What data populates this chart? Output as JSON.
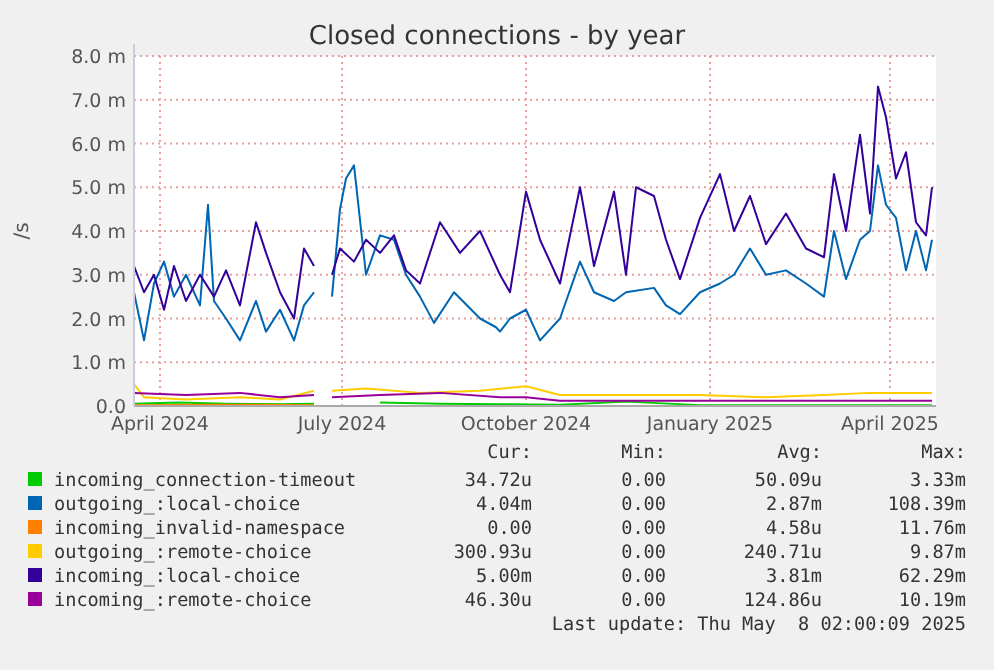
{
  "chart_data": {
    "type": "line",
    "title": "Closed connections - by year",
    "ylabel": "/s",
    "xlim": [
      "2024-03-19",
      "2025-04-24"
    ],
    "xticks": [
      {
        "value": "2024-04-01",
        "label": "April 2024"
      },
      {
        "value": "2024-07-01",
        "label": "July 2024"
      },
      {
        "value": "2024-10-01",
        "label": "October 2024"
      },
      {
        "value": "2025-01-01",
        "label": "January 2025"
      },
      {
        "value": "2025-04-01",
        "label": "April 2025"
      }
    ],
    "ylim": [
      0,
      8
    ],
    "yticks": [
      {
        "value": 0,
        "label": "0.0"
      },
      {
        "value": 1,
        "label": "1.0 m"
      },
      {
        "value": 2,
        "label": "2.0 m"
      },
      {
        "value": 3,
        "label": "3.0 m"
      },
      {
        "value": 4,
        "label": "4.0 m"
      },
      {
        "value": 5,
        "label": "5.0 m"
      },
      {
        "value": 6,
        "label": "6.0 m"
      },
      {
        "value": 7,
        "label": "7.0 m"
      },
      {
        "value": 8,
        "label": "8.0 m"
      }
    ],
    "grid": true,
    "legend": "bottom",
    "annotations": [
      "Cur:",
      "Min:",
      "Avg:",
      "Max:",
      "34.72u",
      "0.00",
      "50.09u",
      "3.33m",
      "4.04m",
      "0.00",
      "2.87m",
      "108.39m",
      "0.00",
      "0.00",
      "4.58u",
      "11.76m",
      "300.93u",
      "0.00",
      "240.71u",
      "9.87m",
      "5.00m",
      "0.00",
      "3.81m",
      "62.29m",
      "46.30u",
      "0.00",
      "124.86u",
      "10.19m",
      "Last update: Thu May  8 02:00:09 2025"
    ],
    "series": [
      {
        "name": "incoming_connection-timeout",
        "color": "#00cc00",
        "x": [
          "2024-03-19",
          "2024-04-10",
          "2024-05-04",
          "2024-05-31",
          "2024-06-17",
          "2024-06-26",
          "2024-07-20",
          "2024-08-19",
          "2024-09-18",
          "2024-10-18",
          "2024-11-20",
          "2024-12-27",
          "2025-01-29",
          "2025-02-27",
          "2025-03-22",
          "2025-04-22"
        ],
        "values": [
          0.05,
          0.08,
          0.05,
          0.04,
          0.05,
          null,
          0.08,
          0.05,
          0.04,
          0.03,
          0.1,
          0.02,
          0.02,
          0.02,
          0.02,
          0.02
        ]
      },
      {
        "name": "outgoing_:local-choice",
        "color": "#0066b3",
        "x": [
          "2024-03-19",
          "2024-03-24",
          "2024-03-29",
          "2024-04-03",
          "2024-04-08",
          "2024-04-14",
          "2024-04-21",
          "2024-04-25",
          "2024-04-28",
          "2024-05-04",
          "2024-05-11",
          "2024-05-19",
          "2024-05-24",
          "2024-05-31",
          "2024-06-07",
          "2024-06-12",
          "2024-06-17",
          "2024-06-20",
          "2024-06-26",
          "2024-06-30",
          "2024-07-03",
          "2024-07-07",
          "2024-07-13",
          "2024-07-20",
          "2024-07-27",
          "2024-08-02",
          "2024-08-09",
          "2024-08-16",
          "2024-08-26",
          "2024-09-08",
          "2024-09-16",
          "2024-09-18",
          "2024-09-23",
          "2024-10-01",
          "2024-10-08",
          "2024-10-18",
          "2024-10-28",
          "2024-11-04",
          "2024-11-14",
          "2024-11-20",
          "2024-12-04",
          "2024-12-10",
          "2024-12-17",
          "2024-12-27",
          "2025-01-06",
          "2025-01-13",
          "2025-01-21",
          "2025-01-29",
          "2025-02-08",
          "2025-02-18",
          "2025-02-27",
          "2025-03-04",
          "2025-03-10",
          "2025-03-17",
          "2025-03-22",
          "2025-03-26",
          "2025-03-30",
          "2025-04-04",
          "2025-04-09",
          "2025-04-14",
          "2025-04-19",
          "2025-04-22"
        ],
        "values": [
          2.6,
          1.5,
          2.8,
          3.3,
          2.5,
          3.0,
          2.3,
          4.6,
          2.4,
          2.0,
          1.5,
          2.4,
          1.7,
          2.2,
          1.5,
          2.3,
          2.6,
          null,
          2.5,
          4.5,
          5.2,
          5.5,
          3.0,
          3.9,
          3.8,
          3.0,
          2.5,
          1.9,
          2.6,
          2.0,
          1.8,
          1.7,
          2.0,
          2.2,
          1.5,
          2.0,
          3.3,
          2.6,
          2.4,
          2.6,
          2.7,
          2.3,
          2.1,
          2.6,
          2.8,
          3.0,
          3.6,
          3.0,
          3.1,
          2.8,
          2.5,
          4.0,
          2.9,
          3.8,
          4.0,
          5.5,
          4.6,
          4.3,
          3.1,
          4.0,
          3.1,
          3.8
        ]
      },
      {
        "name": "incoming_invalid-namespace",
        "color": "#ff8000",
        "x": [
          "2024-03-19",
          "2024-05-01",
          "2024-06-17"
        ],
        "values": [
          0.02,
          0.03,
          0.02
        ]
      },
      {
        "name": "outgoing_:remote-choice",
        "color": "#ffcc00",
        "x": [
          "2024-03-19",
          "2024-03-24",
          "2024-04-14",
          "2024-05-11",
          "2024-05-31",
          "2024-06-17",
          "2024-06-20",
          "2024-06-26",
          "2024-07-13",
          "2024-08-09",
          "2024-09-08",
          "2024-10-01",
          "2024-10-18",
          "2024-11-20",
          "2024-12-27",
          "2025-01-29",
          "2025-02-27",
          "2025-03-22",
          "2025-04-22"
        ],
        "values": [
          0.5,
          0.2,
          0.15,
          0.2,
          0.15,
          0.35,
          null,
          0.35,
          0.4,
          0.3,
          0.35,
          0.45,
          0.25,
          0.25,
          0.25,
          0.2,
          0.25,
          0.3,
          0.3
        ]
      },
      {
        "name": "incoming_:local-choice",
        "color": "#330099",
        "x": [
          "2024-03-19",
          "2024-03-24",
          "2024-03-29",
          "2024-04-03",
          "2024-04-08",
          "2024-04-14",
          "2024-04-21",
          "2024-04-28",
          "2024-05-04",
          "2024-05-11",
          "2024-05-19",
          "2024-05-24",
          "2024-05-31",
          "2024-06-07",
          "2024-06-12",
          "2024-06-17",
          "2024-06-20",
          "2024-06-26",
          "2024-06-30",
          "2024-07-07",
          "2024-07-13",
          "2024-07-20",
          "2024-07-27",
          "2024-08-02",
          "2024-08-09",
          "2024-08-19",
          "2024-08-29",
          "2024-09-08",
          "2024-09-18",
          "2024-09-23",
          "2024-10-01",
          "2024-10-08",
          "2024-10-18",
          "2024-10-28",
          "2024-11-04",
          "2024-11-14",
          "2024-11-20",
          "2024-11-25",
          "2024-12-04",
          "2024-12-10",
          "2024-12-17",
          "2024-12-27",
          "2025-01-06",
          "2025-01-13",
          "2025-01-21",
          "2025-01-29",
          "2025-02-08",
          "2025-02-18",
          "2025-02-27",
          "2025-03-04",
          "2025-03-10",
          "2025-03-17",
          "2025-03-22",
          "2025-03-26",
          "2025-03-30",
          "2025-04-04",
          "2025-04-09",
          "2025-04-14",
          "2025-04-19",
          "2025-04-22"
        ],
        "values": [
          3.2,
          2.6,
          3.0,
          2.2,
          3.2,
          2.4,
          3.0,
          2.5,
          3.1,
          2.3,
          4.2,
          3.5,
          2.6,
          2.0,
          3.6,
          3.2,
          null,
          3.0,
          3.6,
          3.3,
          3.8,
          3.5,
          3.9,
          3.1,
          2.8,
          4.2,
          3.5,
          4.0,
          3.0,
          2.6,
          4.9,
          3.8,
          2.8,
          5.0,
          3.2,
          4.9,
          3.0,
          5.0,
          4.8,
          3.8,
          2.9,
          4.3,
          5.3,
          4.0,
          4.8,
          3.7,
          4.4,
          3.6,
          3.4,
          5.3,
          4.0,
          6.2,
          4.4,
          7.3,
          6.6,
          5.2,
          5.8,
          4.2,
          3.9,
          5.0
        ]
      },
      {
        "name": "incoming_:remote-choice",
        "color": "#990099",
        "x": [
          "2024-03-19",
          "2024-04-14",
          "2024-05-11",
          "2024-05-31",
          "2024-06-17",
          "2024-06-20",
          "2024-06-26",
          "2024-07-20",
          "2024-08-19",
          "2024-09-18",
          "2024-10-01",
          "2024-10-18",
          "2024-11-20",
          "2024-12-27",
          "2025-01-29",
          "2025-02-27",
          "2025-03-22",
          "2025-04-22"
        ],
        "values": [
          0.3,
          0.25,
          0.3,
          0.2,
          0.25,
          null,
          0.2,
          0.25,
          0.3,
          0.2,
          0.2,
          0.12,
          0.12,
          0.12,
          0.12,
          0.12,
          0.12,
          0.12
        ]
      }
    ]
  }
}
